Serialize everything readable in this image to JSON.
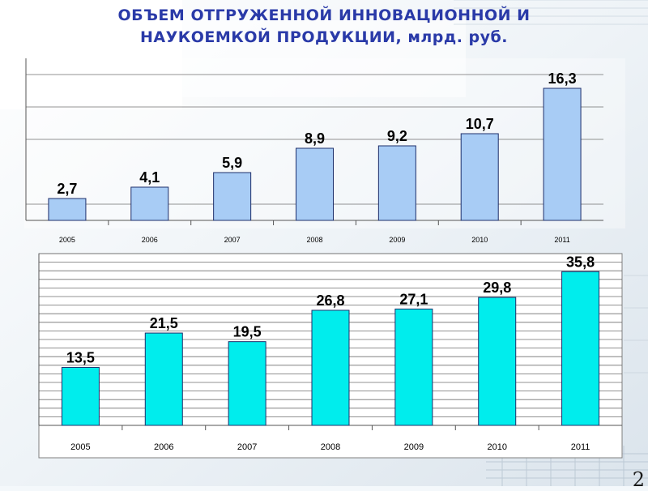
{
  "title": {
    "line1": "ОБЪЕМ ОТГРУЖЕННОЙ ИННОВАЦИОННОЙ И",
    "line2": "НАУКОЕМКОЙ ПРОДУКЦИИ, млрд. руб."
  },
  "page_number": "2",
  "chart_data": [
    {
      "type": "bar",
      "categories": [
        "2005",
        "2006",
        "2007",
        "2008",
        "2009",
        "2010",
        "2011"
      ],
      "values": [
        2.7,
        4.1,
        5.9,
        8.9,
        9.2,
        10.7,
        16.3
      ],
      "value_labels": [
        "2,7",
        "4,1",
        "5,9",
        "8,9",
        "9,2",
        "10,7",
        "16,3"
      ],
      "ylim": [
        0,
        20
      ],
      "gridlines": [
        2,
        10,
        14,
        18
      ],
      "grid": true,
      "bar_color": "#a8ccf5",
      "title": "",
      "xlabel": "",
      "ylabel": ""
    },
    {
      "type": "bar",
      "categories": [
        "2005",
        "2006",
        "2007",
        "2008",
        "2009",
        "2010",
        "2011"
      ],
      "values": [
        13.5,
        21.5,
        19.5,
        26.8,
        27.1,
        29.8,
        35.8
      ],
      "value_labels": [
        "13,5",
        "21,5",
        "19,5",
        "26,8",
        "27,1",
        "29,8",
        "35,8"
      ],
      "ylim": [
        0,
        40
      ],
      "gridlines": [
        2,
        4,
        6,
        8,
        10,
        12,
        14,
        16,
        18,
        20,
        22,
        24,
        26,
        28,
        30,
        32,
        34,
        36,
        38,
        40
      ],
      "grid": true,
      "bar_color": "#00eded",
      "title": "",
      "xlabel": "",
      "ylabel": ""
    }
  ]
}
